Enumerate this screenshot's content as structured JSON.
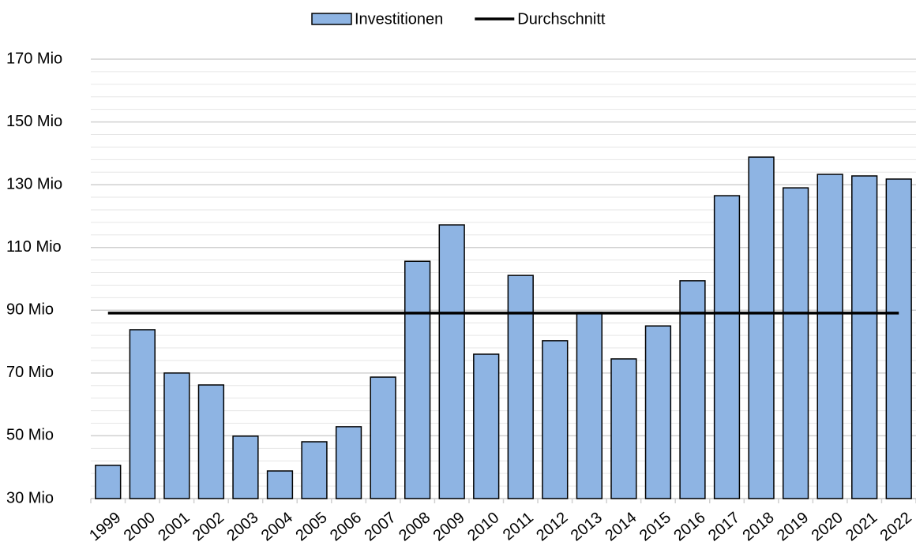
{
  "chart_data": {
    "type": "bar",
    "categories": [
      "1999",
      "2000",
      "2001",
      "2002",
      "2003",
      "2004",
      "2005",
      "2006",
      "2007",
      "2008",
      "2009",
      "2010",
      "2011",
      "2012",
      "2013",
      "2014",
      "2015",
      "2016",
      "2017",
      "2018",
      "2019",
      "2020",
      "2021",
      "2022"
    ],
    "series": [
      {
        "name": "Investitionen",
        "type": "bar",
        "color": "#8eb4e3",
        "values": [
          40.6,
          83.8,
          70,
          66.2,
          49.9,
          38.8,
          48.1,
          52.9,
          68.7,
          105.6,
          117.2,
          76,
          101.1,
          80.3,
          89.3,
          74.5,
          85,
          99.4,
          126.5,
          138.8,
          129,
          133.3,
          132.8,
          131.8
        ]
      },
      {
        "name": "Durchschnitt",
        "type": "line",
        "color": "#000000",
        "values": [
          89.1,
          89.1,
          89.1,
          89.1,
          89.1,
          89.1,
          89.1,
          89.1,
          89.1,
          89.1,
          89.1,
          89.1,
          89.1,
          89.1,
          89.1,
          89.1,
          89.1,
          89.1,
          89.1,
          89.1,
          89.1,
          89.1,
          89.1,
          89.1
        ]
      }
    ],
    "ylim": [
      30,
      170
    ],
    "yticks": [
      {
        "value": 30,
        "label": "30 Mio"
      },
      {
        "value": 50,
        "label": "50 Mio"
      },
      {
        "value": 70,
        "label": "70 Mio"
      },
      {
        "value": 90,
        "label": "90 Mio"
      },
      {
        "value": 110,
        "label": "110 Mio"
      },
      {
        "value": 130,
        "label": "130 Mio"
      },
      {
        "value": 150,
        "label": "150 Mio"
      },
      {
        "value": 170,
        "label": "170 Mio"
      }
    ],
    "yminorticks": [
      34,
      38,
      42,
      46,
      54,
      58,
      62,
      66,
      74,
      78,
      82,
      86,
      94,
      98,
      102,
      106,
      114,
      118,
      122,
      126,
      134,
      138,
      142,
      146,
      154,
      158,
      162,
      166
    ],
    "grid": true,
    "legend": "top"
  }
}
